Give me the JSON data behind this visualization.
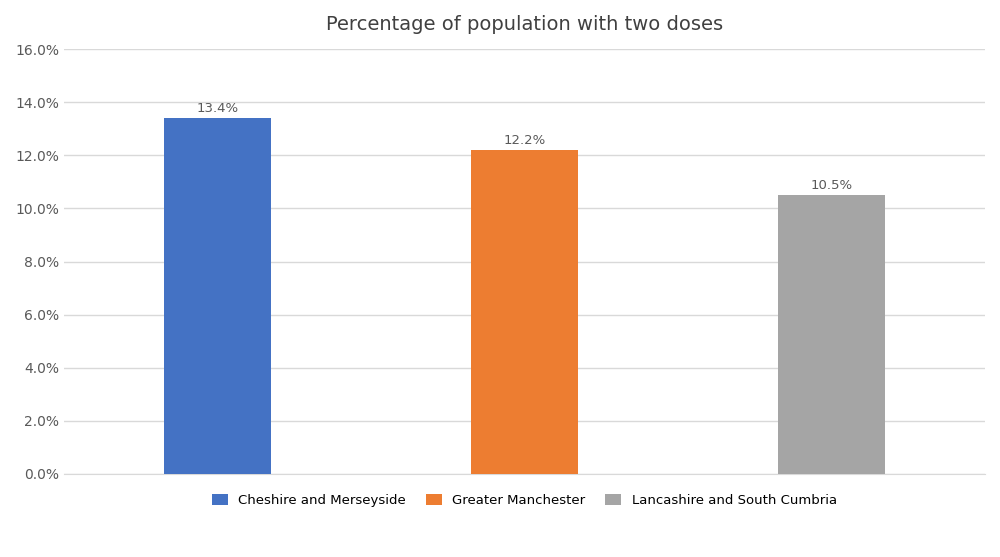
{
  "title": "Percentage of population with two doses",
  "categories": [
    "Cheshire and Merseyside",
    "Greater Manchester",
    "Lancashire and South Cumbria"
  ],
  "values": [
    13.4,
    12.2,
    10.5
  ],
  "bar_colors": [
    "#4472C4",
    "#ED7D31",
    "#A5A5A5"
  ],
  "ylim": [
    0,
    16.0
  ],
  "yticks": [
    0,
    2,
    4,
    6,
    8,
    10,
    12,
    14,
    16
  ],
  "ytick_labels": [
    "0.0%",
    "2.0%",
    "4.0%",
    "6.0%",
    "8.0%",
    "10.0%",
    "12.0%",
    "14.0%",
    "16.0%"
  ],
  "bar_labels": [
    "13.4%",
    "12.2%",
    "10.5%"
  ],
  "legend_labels": [
    "Cheshire and Merseyside",
    "Greater Manchester",
    "Lancashire and South Cumbria"
  ],
  "background_color": "#FFFFFF",
  "grid_color": "#D9D9D9",
  "title_fontsize": 14,
  "label_fontsize": 9.5,
  "tick_fontsize": 10,
  "legend_fontsize": 9.5,
  "bar_width": 0.35,
  "xlim": [
    -0.5,
    2.5
  ]
}
